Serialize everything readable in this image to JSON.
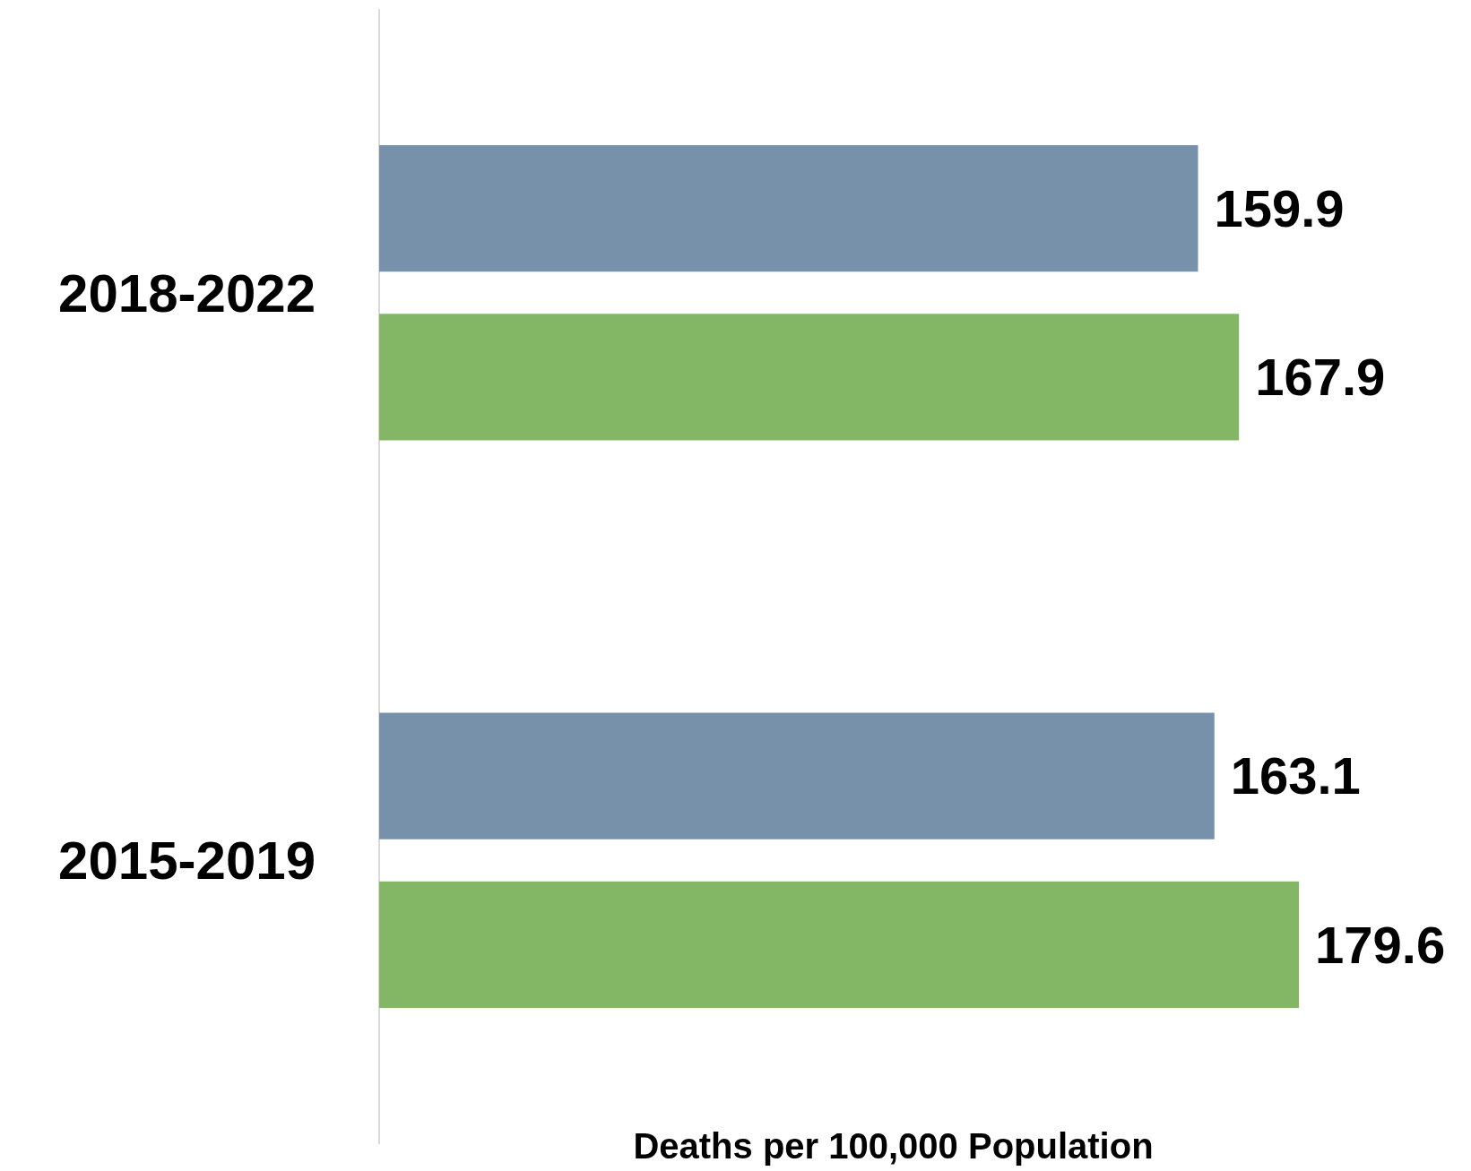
{
  "chart_data": {
    "type": "bar",
    "orientation": "horizontal",
    "xlabel": "Deaths per 100,000 Population",
    "categories": [
      "2018-2022",
      "2015-2019"
    ],
    "series": [
      {
        "color": "#7891aa",
        "values": [
          159.9,
          163.1
        ]
      },
      {
        "color": "#84b765",
        "values": [
          167.9,
          179.6
        ]
      }
    ],
    "data_labels": true
  }
}
